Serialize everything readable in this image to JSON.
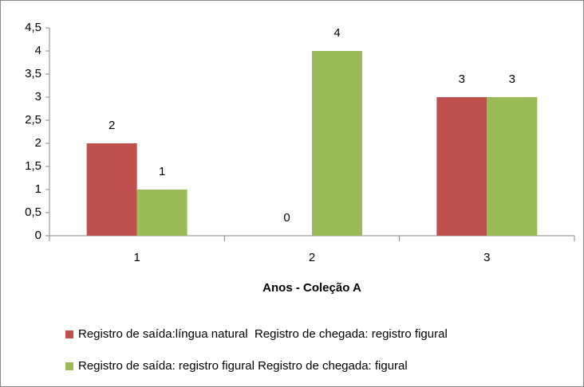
{
  "chart_data": {
    "type": "bar",
    "categories": [
      "1",
      "2",
      "3"
    ],
    "series": [
      {
        "name": "Registro de saída:língua natural  Registro de chegada: registro figural",
        "color": "#c0504d",
        "values": [
          2,
          0,
          3
        ]
      },
      {
        "name": "Registro de saída: registro figural Registro de chegada: figural",
        "color": "#9bbb59",
        "values": [
          1,
          4,
          3
        ]
      }
    ],
    "xlabel": "Anos - Coleção A",
    "ylim": [
      0,
      4.5
    ],
    "yticks": [
      0,
      {
        "value": 0.5,
        "label": "0,5"
      },
      1,
      {
        "value": 1.5,
        "label": "1,5"
      },
      2,
      {
        "value": 2.5,
        "label": "2,5"
      },
      3,
      {
        "value": 3.5,
        "label": "3,5"
      },
      4,
      {
        "value": 4.5,
        "label": "4,5"
      }
    ],
    "grid": false,
    "legend": "bottom",
    "data_labels": true
  }
}
